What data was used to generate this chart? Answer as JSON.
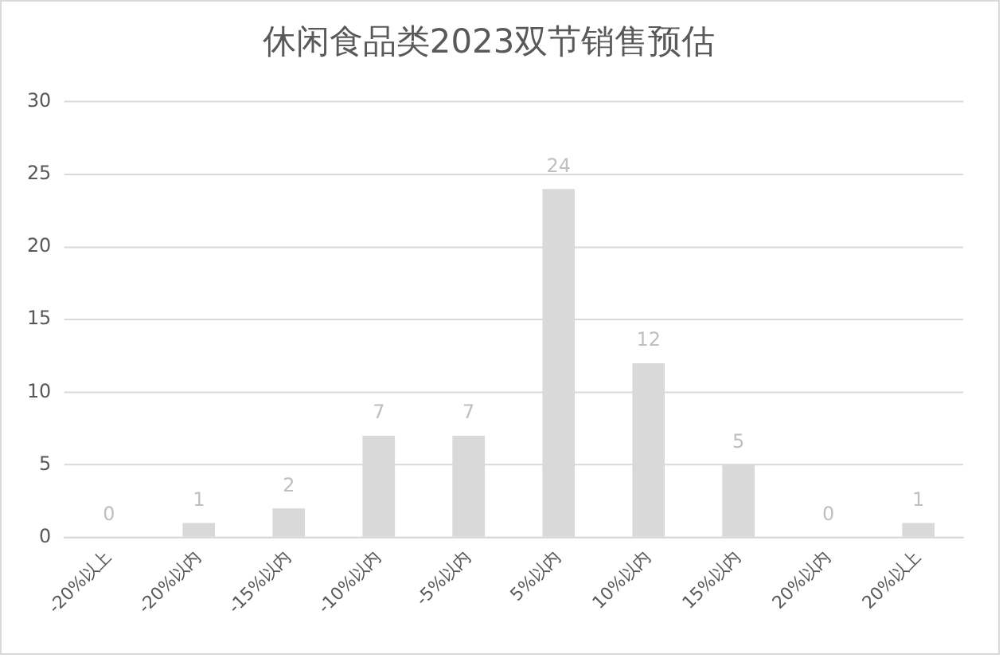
{
  "chart_data": {
    "type": "bar",
    "title": "休闲食品类2023双节销售预估",
    "categories": [
      "-20%以上",
      "-20%以内",
      "-15%以内",
      "-10%以内",
      "-5%以内",
      "5%以内",
      "10%以内",
      "15%以内",
      "20%以内",
      "20%以上"
    ],
    "values": [
      0,
      1,
      2,
      7,
      7,
      24,
      12,
      5,
      0,
      1
    ],
    "color": "#d9d9d9",
    "ylim": [
      0,
      30
    ],
    "yticks": [
      0,
      5,
      10,
      15,
      20,
      25,
      30
    ],
    "grid": "y",
    "data_labels": true
  }
}
